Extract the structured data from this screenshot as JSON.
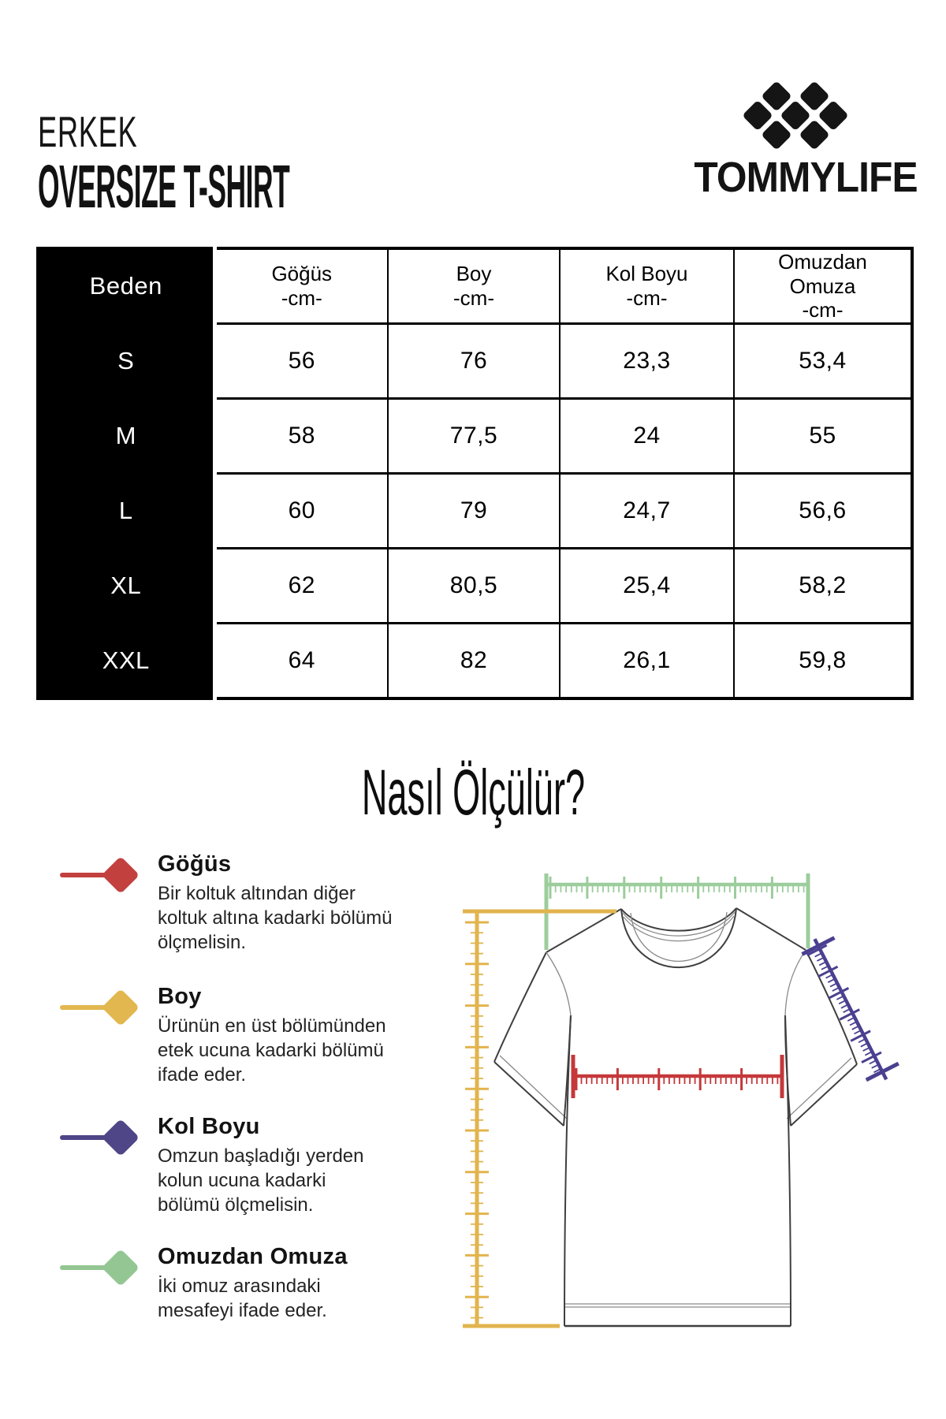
{
  "header": {
    "category": "ERKEK",
    "product_title": "OVERSIZE T-SHIRT",
    "brand": "TOMMYLIFE"
  },
  "colors": {
    "logo_black": "#151515",
    "chest_red": "#C5383A",
    "length_yellow": "#E2B44E",
    "sleeve_purple": "#4A4090",
    "shoulder_green": "#9CCD9C",
    "diamond_red": "#C2403E",
    "diamond_yellow": "#E2B74F",
    "diamond_purple": "#4E4687",
    "diamond_green": "#93C693"
  },
  "size_table": {
    "corner_label": "Beden",
    "columns": [
      "Göğüs\n-cm-",
      "Boy\n-cm-",
      "Kol Boyu\n-cm-",
      "Omuzdan\nOmuza\n-cm-"
    ],
    "rows": [
      {
        "size": "S",
        "values": [
          "56",
          "76",
          "23,3",
          "53,4"
        ]
      },
      {
        "size": "M",
        "values": [
          "58",
          "77,5",
          "24",
          "55"
        ]
      },
      {
        "size": "L",
        "values": [
          "60",
          "79",
          "24,7",
          "56,6"
        ]
      },
      {
        "size": "XL",
        "values": [
          "62",
          "80,5",
          "25,4",
          "58,2"
        ]
      },
      {
        "size": "XXL",
        "values": [
          "64",
          "82",
          "26,1",
          "59,8"
        ]
      }
    ]
  },
  "how_to_measure": {
    "title": "Nasıl Ölçülür?",
    "items": [
      {
        "name": "Göğüs",
        "color": "#C2403E",
        "description": "Bir koltuk altından diğer\nkoltuk altına kadarki bölümü\nölçmelisin."
      },
      {
        "name": "Boy",
        "color": "#E2B74F",
        "description": "Ürünün en üst bölümünden\netek ucuna kadarki bölümü\nifade eder."
      },
      {
        "name": "Kol Boyu",
        "color": "#4E4687",
        "description": "Omzun başladığı yerden\nkolun ucuna kadarki\nbölümü ölçmelisin."
      },
      {
        "name": "Omuzdan Omuza",
        "color": "#93C693",
        "description": "İki omuz arasındaki\nmesafeyi ifade eder."
      }
    ]
  }
}
